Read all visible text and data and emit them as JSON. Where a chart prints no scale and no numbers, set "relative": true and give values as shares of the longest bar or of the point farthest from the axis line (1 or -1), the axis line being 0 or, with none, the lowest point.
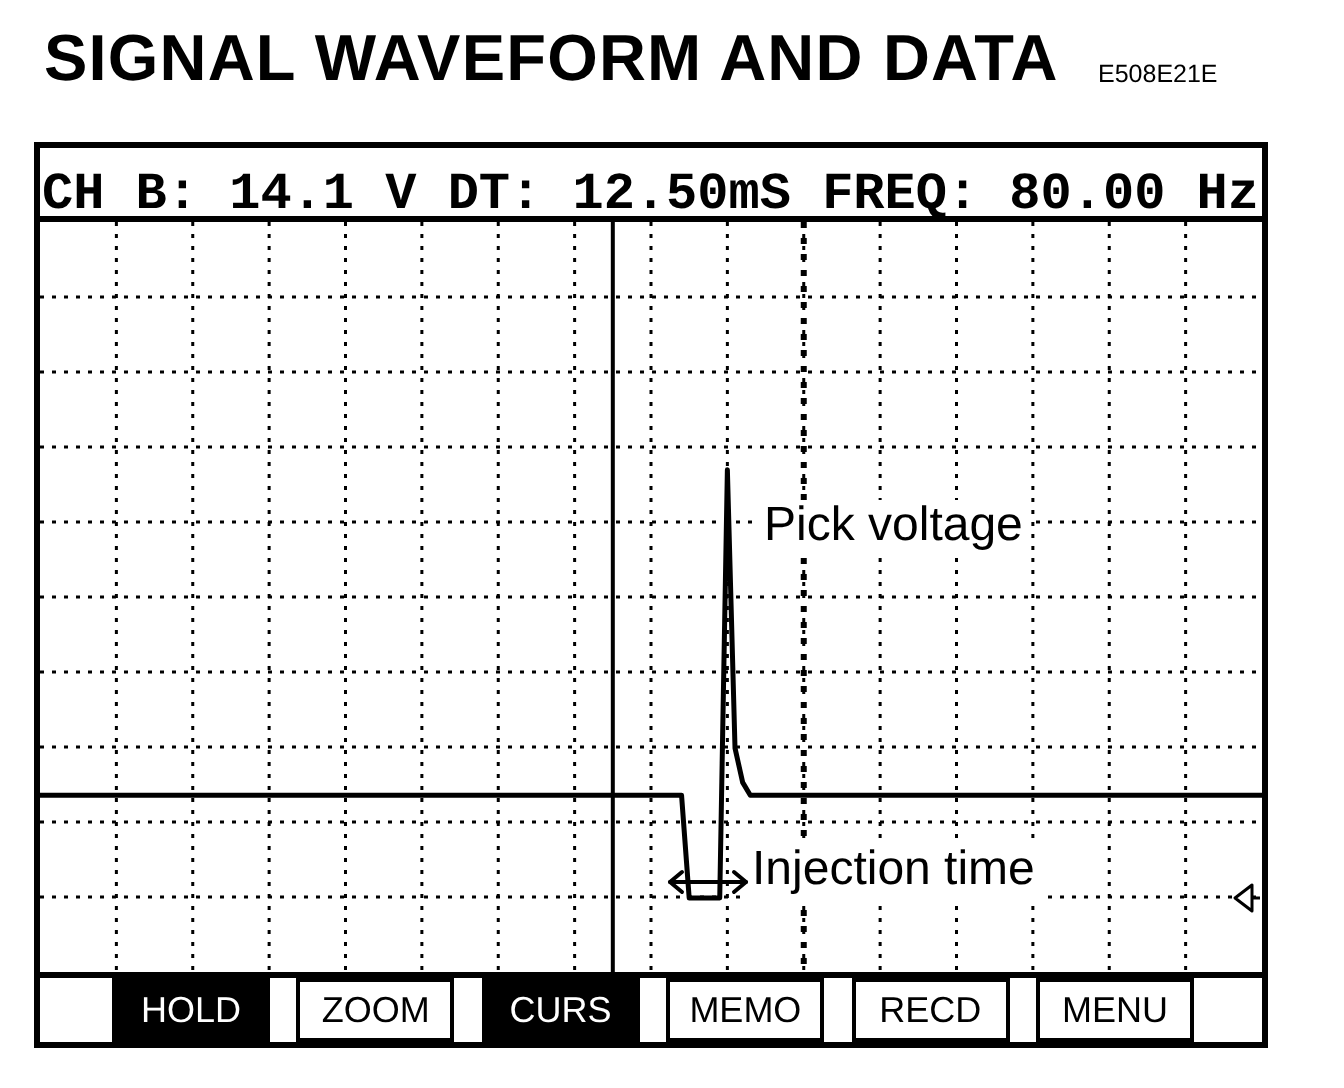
{
  "chart_data": {
    "type": "line",
    "title": "SIGNAL WAVEFORM AND DATA",
    "subtitle": "CH B: 14.1 V DT: 12.50mS FREQ: 80.00 Hz",
    "annotations": [
      "E508E21E",
      "Pick voltage",
      "Injection time",
      "HOLD",
      "ZOOM",
      "CURS",
      "MEMO",
      "RECD",
      "MENU"
    ],
    "relative": true,
    "tick_labels": false,
    "grid": true,
    "color": "#000000",
    "categories": [
      null,
      null,
      null,
      null,
      null,
      null,
      null,
      null,
      null,
      null,
      null,
      null,
      null,
      null,
      null,
      null,
      null,
      null,
      null,
      null,
      null,
      null,
      null,
      null,
      null,
      null,
      null,
      null,
      null,
      null,
      null,
      null,
      null,
      null,
      null,
      null,
      null,
      null,
      null,
      null,
      null,
      null,
      null,
      null,
      null,
      null,
      null,
      null,
      null,
      null,
      null,
      null,
      null,
      null,
      null,
      null,
      null,
      null,
      null,
      null,
      null,
      null,
      null,
      null,
      null,
      null,
      null,
      null,
      null,
      null,
      null,
      null,
      null,
      null,
      null,
      null,
      null,
      null,
      null,
      null,
      null,
      null,
      null,
      null,
      null,
      null,
      null,
      null,
      null,
      null,
      null,
      null,
      null,
      null,
      null,
      null,
      null,
      null,
      null,
      null,
      null,
      null,
      null,
      null,
      null,
      null,
      null,
      null,
      null,
      null,
      null,
      null,
      null,
      null,
      null,
      null,
      null,
      null,
      null,
      null,
      null,
      null,
      null,
      null,
      null,
      null,
      null,
      null,
      null,
      null,
      null,
      null,
      null,
      null,
      null,
      null,
      null,
      null,
      null,
      null,
      null,
      null,
      null,
      null,
      null,
      null,
      null,
      null,
      null,
      null,
      null,
      null,
      null,
      null,
      null,
      null,
      null,
      null,
      null,
      null,
      null
    ],
    "values": [
      0.24,
      0.24,
      0.24,
      0.24,
      0.24,
      0.24,
      0.24,
      0.24,
      0.24,
      0.24,
      0.24,
      0.24,
      0.24,
      0.24,
      0.24,
      0.24,
      0.24,
      0.24,
      0.24,
      0.24,
      0.24,
      0.24,
      0.24,
      0.24,
      0.24,
      0.24,
      0.24,
      0.24,
      0.24,
      0.24,
      0.24,
      0.24,
      0.24,
      0.24,
      0.24,
      0.24,
      0.24,
      0.24,
      0.24,
      0.24,
      0.24,
      0.24,
      0.24,
      0.24,
      0.24,
      0.24,
      0.24,
      0.24,
      0.24,
      0.24,
      0.24,
      0.24,
      0.24,
      0.24,
      0.24,
      0.24,
      0.24,
      0.24,
      0.24,
      0.24,
      0.24,
      0.24,
      0.24,
      0.24,
      0.24,
      0.24,
      0.24,
      0.24,
      0.24,
      0.24,
      0.24,
      0.24,
      0.24,
      0.24,
      0.24,
      0.24,
      0.24,
      0.24,
      0.24,
      0.24,
      0.24,
      0.24,
      0.24,
      0.24,
      0.24,
      0,
      0,
      0,
      0,
      0,
      1,
      0.35,
      0.27,
      0.24,
      0.24,
      0.24,
      0.24,
      0.24,
      0.24,
      0.24,
      0.24,
      0.24,
      0.24,
      0.24,
      0.24,
      0.24,
      0.24,
      0.24,
      0.24,
      0.24,
      0.24,
      0.24,
      0.24,
      0.24,
      0.24,
      0.24,
      0.24,
      0.24,
      0.24,
      0.24,
      0.24,
      0.24,
      0.24,
      0.24,
      0.24,
      0.24,
      0.24,
      0.24,
      0.24,
      0.24,
      0.24,
      0.24,
      0.24,
      0.24,
      0.24,
      0.24,
      0.24,
      0.24,
      0.24,
      0.24,
      0.24,
      0.24,
      0.24,
      0.24,
      0.24,
      0.24,
      0.24,
      0.24,
      0.24,
      0.24,
      0.24,
      0.24,
      0.24,
      0.24,
      0.24,
      0.24,
      0.24,
      0.24,
      0.24,
      0.24,
      0.24
    ]
  }
}
